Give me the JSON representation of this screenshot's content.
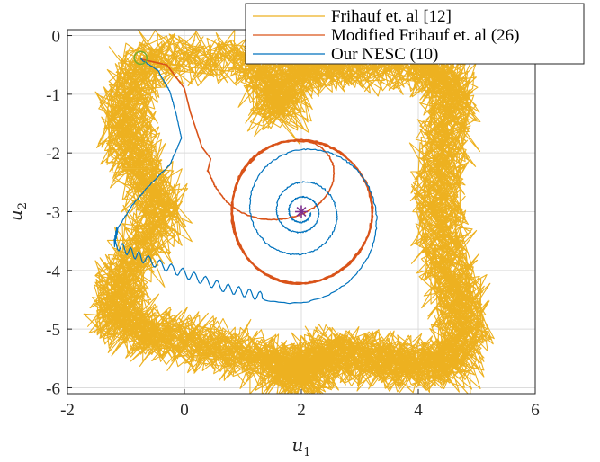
{
  "chart_data": {
    "type": "line",
    "xlabel": "u",
    "xlabel_sub": "1",
    "ylabel": "u",
    "ylabel_sub": "2",
    "xlim": [
      -2,
      6
    ],
    "ylim": [
      -6.1,
      0.1
    ],
    "xticks": [
      -2,
      0,
      2,
      4,
      6
    ],
    "xtick_labels": [
      "-2",
      "0",
      "2",
      "4",
      "6"
    ],
    "yticks": [
      0,
      -1,
      -2,
      -3,
      -4,
      -5,
      -6
    ],
    "ytick_labels": [
      "0",
      "-1",
      "-2",
      "-3",
      "-4",
      "-5",
      "-6"
    ],
    "grid": true,
    "legend_position": "top-right",
    "series": [
      {
        "name": "Frihauf et. al [12]",
        "color": "#EDB120",
        "kind": "dither-band",
        "trajectory_corners": [
          [
            -0.7,
            -0.4
          ],
          [
            1.3,
            -0.4
          ],
          [
            1.6,
            -1.3
          ],
          [
            2.0,
            -0.45
          ],
          [
            2.7,
            -0.5
          ],
          [
            4.2,
            -0.5
          ],
          [
            4.6,
            -1.0
          ],
          [
            4.4,
            -2.0
          ],
          [
            4.35,
            -3.0
          ],
          [
            4.5,
            -4.0
          ],
          [
            4.8,
            -4.8
          ],
          [
            4.6,
            -5.6
          ],
          [
            3.8,
            -5.6
          ],
          [
            3.2,
            -5.5
          ],
          [
            2.4,
            -5.4
          ],
          [
            2.0,
            -5.8
          ],
          [
            1.6,
            -5.6
          ],
          [
            0.5,
            -5.3
          ],
          [
            -0.5,
            -5.1
          ],
          [
            -1.2,
            -4.8
          ],
          [
            -1.0,
            -4.0
          ],
          [
            -0.35,
            -3.0
          ],
          [
            -0.8,
            -2.2
          ],
          [
            -1.05,
            -1.4
          ],
          [
            -0.7,
            -0.4
          ]
        ]
      },
      {
        "name": "Modified Frihauf et. al (26)",
        "color": "#D95319",
        "kind": "spiral-to-cycle",
        "start": [
          -0.75,
          -0.4
        ],
        "path": [
          [
            -0.75,
            -0.4
          ],
          [
            -0.3,
            -0.5
          ],
          [
            0.0,
            -0.9
          ],
          [
            0.1,
            -1.3
          ],
          [
            0.3,
            -1.9
          ],
          [
            0.45,
            -2.1
          ],
          [
            0.4,
            -2.3
          ]
        ],
        "limit_cycle": {
          "cx": 2.0,
          "cy": -3.0,
          "rx": 1.2,
          "ry": 1.22
        }
      },
      {
        "name": "Our NESC (10)",
        "color": "#0072BD",
        "kind": "spiral-to-point",
        "start": [
          -0.75,
          -0.4
        ],
        "path": [
          [
            -0.75,
            -0.4
          ],
          [
            -0.45,
            -0.6
          ],
          [
            -0.25,
            -0.95
          ],
          [
            -0.15,
            -1.3
          ],
          [
            -0.05,
            -1.75
          ],
          [
            -0.25,
            -2.2
          ],
          [
            -0.6,
            -2.55
          ],
          [
            -0.9,
            -2.9
          ],
          [
            -1.15,
            -3.3
          ],
          [
            -1.2,
            -3.55
          ],
          [
            -0.7,
            -3.8
          ],
          [
            0.0,
            -4.05
          ],
          [
            0.7,
            -4.3
          ],
          [
            1.35,
            -4.45
          ]
        ],
        "spiral_center": [
          2.0,
          -3.0
        ]
      }
    ],
    "markers": [
      {
        "type": "circle",
        "x": -0.75,
        "y": -0.38,
        "color": "#77AC30"
      },
      {
        "type": "star",
        "x": 2.0,
        "y": -3.0,
        "color": "#7E2F8E"
      }
    ]
  }
}
